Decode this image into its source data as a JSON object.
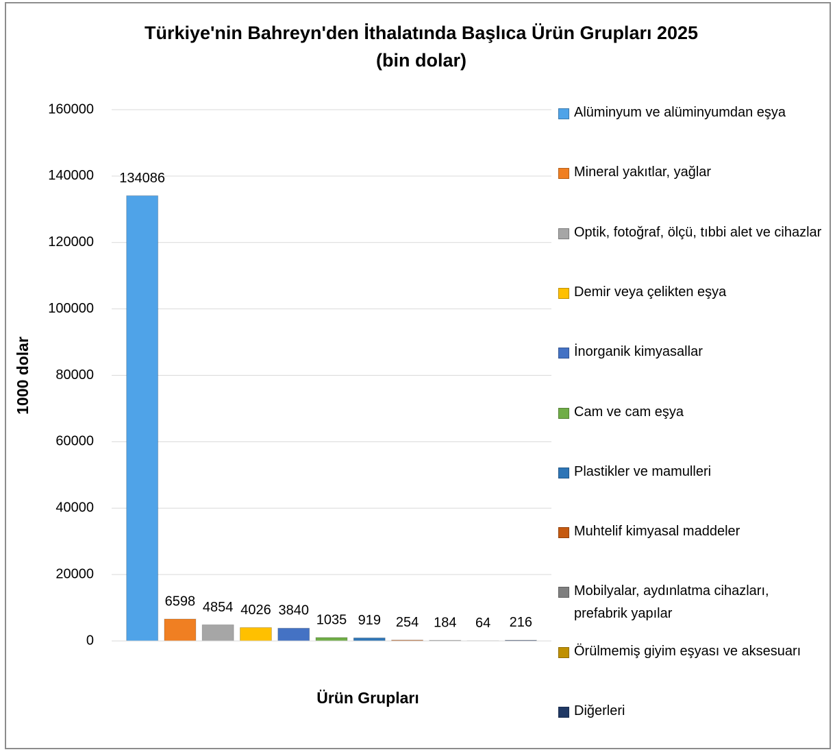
{
  "chart_data": {
    "type": "bar",
    "title": [
      "Türkiye'nin Bahreyn'den İthalatında Başlıca Ürün Grupları 2025",
      "(bin dolar)"
    ],
    "x_label": "Ürün Grupları",
    "y_label": "1000 dolar",
    "categories": [
      null
    ],
    "series": [
      {
        "name": "Alüminyum ve alüminyumdan eşya",
        "color": "#4fa3e8",
        "values": [
          134086
        ]
      },
      {
        "name": "Mineral yakıtlar, yağlar",
        "color": "#f07f22",
        "values": [
          6598
        ]
      },
      {
        "name": "Optik, fotoğraf, ölçü, tıbbi alet ve cihazlar",
        "color": "#a6a6a6",
        "values": [
          4854
        ]
      },
      {
        "name": "Demir veya çelikten eşya",
        "color": "#ffc000",
        "values": [
          4026
        ]
      },
      {
        "name": "İnorganik kimyasallar",
        "color": "#4472c4",
        "values": [
          3840
        ]
      },
      {
        "name": "Cam ve cam eşya",
        "color": "#70ad47",
        "values": [
          1035
        ]
      },
      {
        "name": "Plastikler ve mamulleri",
        "color": "#2e75b6",
        "values": [
          919
        ]
      },
      {
        "name": "Muhtelif kimyasal maddeler",
        "color": "#c55a11",
        "values": [
          254
        ]
      },
      {
        "name": "Mobilyalar, aydınlatma cihazları, prefabrik yapılar",
        "color": "#7f7f7f",
        "values": [
          184
        ]
      },
      {
        "name": "Örülmemiş giyim eşyası ve aksesuarı",
        "color": "#bf9000",
        "values": [
          64
        ]
      },
      {
        "name": "Diğerleri",
        "color": "#203864",
        "values": [
          216
        ]
      }
    ],
    "ylim": [
      0,
      160000
    ],
    "yticks": [
      0,
      20000,
      40000,
      60000,
      80000,
      100000,
      120000,
      140000,
      160000
    ],
    "grid": true,
    "legend": "right"
  }
}
